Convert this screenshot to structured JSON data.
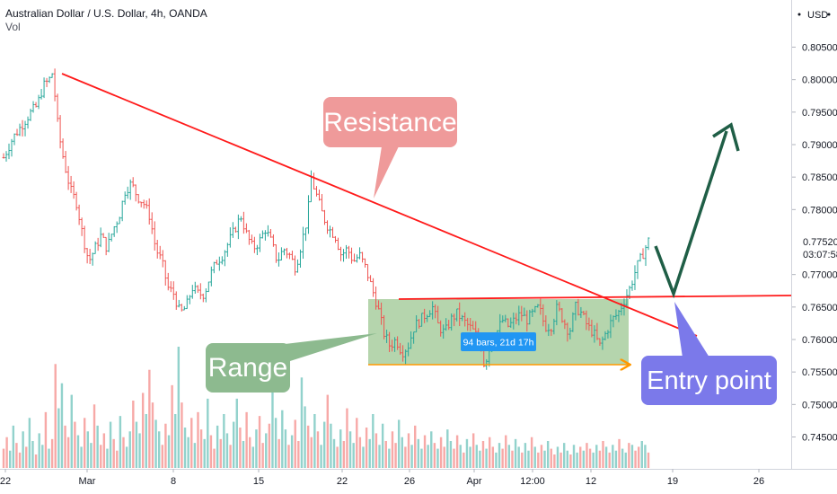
{
  "header": {
    "title": "Australian Dollar / U.S. Dollar, 4h, OANDA",
    "volume_label": "Vol"
  },
  "chart_data": {
    "type": "candlestick",
    "symbol": "Australian Dollar / U.S. Dollar",
    "interval": "4h",
    "exchange": "OANDA",
    "currency_label": "USD",
    "y_ticks": [
      "0.80500",
      "0.80000",
      "0.79500",
      "0.79000",
      "0.78500",
      "0.78000",
      "0.77500",
      "0.77000",
      "0.76500",
      "0.76000",
      "0.75500",
      "0.75000",
      "0.74500"
    ],
    "y_tick_values": [
      0.805,
      0.8,
      0.795,
      0.79,
      0.785,
      0.78,
      0.775,
      0.77,
      0.765,
      0.76,
      0.755,
      0.75,
      0.745
    ],
    "ylim": [
      0.7407,
      0.8058
    ],
    "x_ticks": [
      "22",
      "Mar",
      "8",
      "15",
      "22",
      "26",
      "Apr",
      "12:00",
      "12",
      "19",
      "26"
    ],
    "price_label": {
      "value": "0.77520",
      "countdown": "03:07:58",
      "color": "#26a69a"
    },
    "price_path": [
      [
        0,
        0.788
      ],
      [
        3,
        0.791
      ],
      [
        6,
        0.793
      ],
      [
        9,
        0.795
      ],
      [
        11,
        0.796
      ],
      [
        13,
        0.799
      ],
      [
        15,
        0.8
      ],
      [
        16,
        0.801
      ],
      [
        17,
        0.797
      ],
      [
        18,
        0.792
      ],
      [
        20,
        0.787
      ],
      [
        22,
        0.783
      ],
      [
        24,
        0.781
      ],
      [
        26,
        0.776
      ],
      [
        28,
        0.772
      ],
      [
        30,
        0.774
      ],
      [
        32,
        0.776
      ],
      [
        34,
        0.774
      ],
      [
        36,
        0.777
      ],
      [
        38,
        0.779
      ],
      [
        40,
        0.783
      ],
      [
        42,
        0.784
      ],
      [
        44,
        0.782
      ],
      [
        46,
        0.781
      ],
      [
        48,
        0.779
      ],
      [
        50,
        0.774
      ],
      [
        52,
        0.772
      ],
      [
        54,
        0.768
      ],
      [
        56,
        0.767
      ],
      [
        58,
        0.764
      ],
      [
        60,
        0.765
      ],
      [
        62,
        0.768
      ],
      [
        64,
        0.767
      ],
      [
        66,
        0.767
      ],
      [
        68,
        0.77
      ],
      [
        70,
        0.772
      ],
      [
        72,
        0.773
      ],
      [
        74,
        0.775
      ],
      [
        76,
        0.777
      ],
      [
        78,
        0.779
      ],
      [
        80,
        0.776
      ],
      [
        82,
        0.774
      ],
      [
        84,
        0.775
      ],
      [
        86,
        0.777
      ],
      [
        88,
        0.775
      ],
      [
        90,
        0.772
      ],
      [
        92,
        0.774
      ],
      [
        94,
        0.773
      ],
      [
        96,
        0.771
      ],
      [
        98,
        0.775
      ],
      [
        100,
        0.779
      ],
      [
        101,
        0.785
      ],
      [
        103,
        0.782
      ],
      [
        105,
        0.779
      ],
      [
        107,
        0.777
      ],
      [
        109,
        0.776
      ],
      [
        111,
        0.773
      ],
      [
        113,
        0.774
      ],
      [
        115,
        0.772
      ],
      [
        117,
        0.773
      ],
      [
        119,
        0.771
      ],
      [
        121,
        0.768
      ],
      [
        123,
        0.765
      ],
      [
        125,
        0.761
      ],
      [
        127,
        0.759
      ],
      [
        129,
        0.76
      ],
      [
        131,
        0.758
      ],
      [
        133,
        0.759
      ],
      [
        135,
        0.762
      ],
      [
        137,
        0.763
      ],
      [
        139,
        0.764
      ],
      [
        141,
        0.765
      ],
      [
        143,
        0.762
      ],
      [
        145,
        0.761
      ],
      [
        147,
        0.763
      ],
      [
        149,
        0.764
      ],
      [
        151,
        0.763
      ],
      [
        153,
        0.762
      ],
      [
        155,
        0.761
      ],
      [
        157,
        0.759
      ],
      [
        158,
        0.756
      ],
      [
        160,
        0.759
      ],
      [
        162,
        0.761
      ],
      [
        164,
        0.763
      ],
      [
        166,
        0.762
      ],
      [
        168,
        0.763
      ],
      [
        170,
        0.764
      ],
      [
        172,
        0.763
      ],
      [
        174,
        0.764
      ],
      [
        176,
        0.765
      ],
      [
        178,
        0.762
      ],
      [
        180,
        0.762
      ],
      [
        182,
        0.765
      ],
      [
        184,
        0.763
      ],
      [
        186,
        0.761
      ],
      [
        188,
        0.765
      ],
      [
        190,
        0.764
      ],
      [
        192,
        0.762
      ],
      [
        194,
        0.761
      ],
      [
        196,
        0.759
      ],
      [
        198,
        0.761
      ],
      [
        200,
        0.763
      ],
      [
        202,
        0.764
      ],
      [
        204,
        0.766
      ],
      [
        206,
        0.768
      ],
      [
        208,
        0.771
      ],
      [
        210,
        0.773
      ],
      [
        212,
        0.7752
      ]
    ],
    "volume_values": [
      1,
      1.6,
      0.9,
      2.2,
      1.3,
      0.8,
      1.9,
      1.1,
      2.6,
      1.4,
      0.7,
      1.8,
      1.2,
      2.9,
      1,
      1.5,
      5.4,
      3.1,
      4.4,
      2.2,
      1.6,
      3.8,
      2.4,
      1.7,
      1.1,
      2.6,
      1.9,
      1.3,
      3.3,
      2.2,
      1.2,
      1.8,
      1,
      2.4,
      1.5,
      0.9,
      2.7,
      1.6,
      1.1,
      1.9,
      3.5,
      2.4,
      1.8,
      3.9,
      2.8,
      5.1,
      3.4,
      2.5,
      1.9,
      1.2,
      2.3,
      1.7,
      4.3,
      2.8,
      6.3,
      3.4,
      2.1,
      1.6,
      2.6,
      1.3,
      2.9,
      2,
      1.5,
      3.6,
      1.7,
      1,
      2.2,
      1.5,
      2.8,
      1.8,
      1.2,
      2.4,
      3.6,
      2.1,
      1.4,
      2.9,
      1.6,
      1.1,
      2,
      2.7,
      1.3,
      1.8,
      2.3,
      4.2,
      2.6,
      1.5,
      3,
      2,
      1.2,
      1.7,
      2.5,
      1.4,
      4.7,
      3.2,
      2.2,
      1.6,
      2.8,
      1.9,
      1.2,
      2.4,
      3.8,
      2.3,
      1.5,
      1.1,
      2,
      1.4,
      3.1,
      1.9,
      1.3,
      2.6,
      1.6,
      1.1,
      2.1,
      1.5,
      2.8,
      1.8,
      1.2,
      2.3,
      1.4,
      1,
      1.9,
      1.3,
      2.5,
      1.6,
      1.1,
      1.8,
      1.2,
      2.2,
      1.5,
      1,
      1.7,
      1.2,
      1.9,
      1.3,
      1,
      1.6,
      1.1,
      2,
      1.4,
      1,
      1.7,
      1.2,
      0.8,
      1.5,
      1.1,
      1.8,
      1.2,
      0.9,
      1.4,
      1,
      1.6,
      1.1,
      0.8,
      1.3,
      1,
      1.7,
      1.2,
      0.9,
      1.5,
      1.1,
      0.8,
      1.3,
      0.9,
      1.6,
      1.1,
      0.8,
      1.2,
      0.9,
      1.4,
      1,
      0.7,
      1.1,
      0.8,
      1.3,
      0.9,
      0.7,
      1.2,
      0.8,
      1.1,
      0.9,
      1.3,
      1,
      0.8,
      1.2,
      0.9,
      1.4,
      1.1,
      0.8,
      1.2,
      0.9,
      1.5,
      1,
      0.8,
      1.3,
      1.2,
      0.9,
      1.1,
      1.4,
      1.2,
      0.8
    ]
  },
  "annotations": {
    "resistance_label": "Resistance",
    "range_label": "Range",
    "entry_label": "Entry point",
    "range_info": "94 bars, 21d 17h"
  },
  "colors": {
    "up": "#26a69a",
    "down": "#ef5350",
    "trendline": "#ff1a1a",
    "resistance_callout": "#ef9a9a",
    "range_callout": "#8dba8f",
    "range_box": "#a8ce9f",
    "entry_callout": "#7b79ea",
    "arrow": "#1f5e46",
    "range_marker": "#ff9800",
    "info_badge": "#2196f3"
  }
}
